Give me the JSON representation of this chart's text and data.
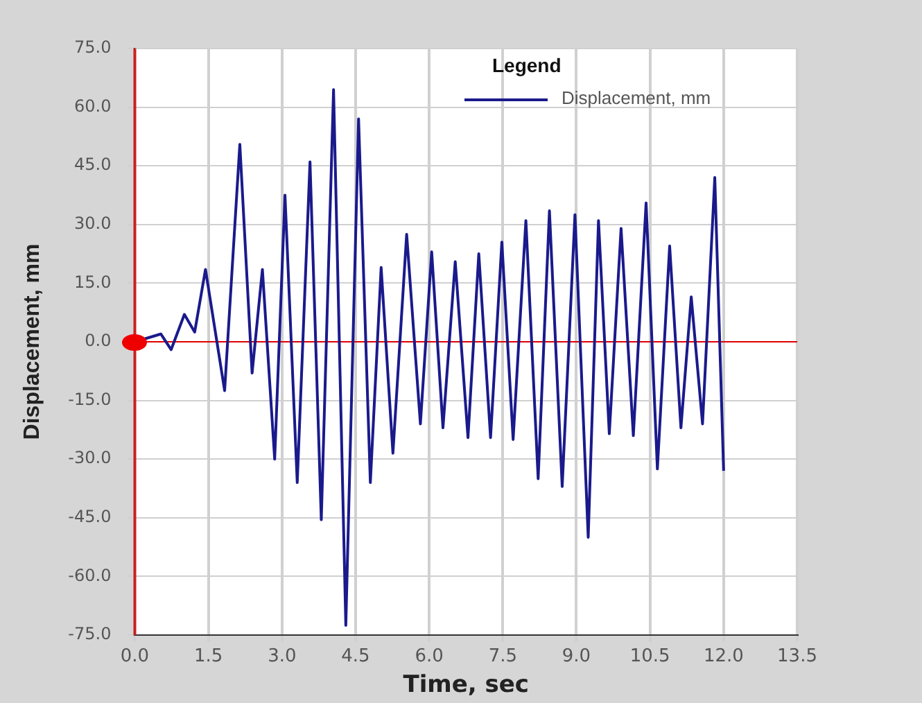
{
  "chart_data": {
    "type": "line",
    "xlabel": "Time, sec",
    "ylabel": "Displacement, mm",
    "legend_title": "Legend",
    "legend": "top right",
    "grid": true,
    "marker": "none",
    "line_style": "solid",
    "xlim": [
      0,
      13.5
    ],
    "ylim": [
      -75,
      75
    ],
    "xticks": [
      {
        "value": 0,
        "label": "0.0"
      },
      {
        "value": 1.5,
        "label": "1.5"
      },
      {
        "value": 3,
        "label": "3.0"
      },
      {
        "value": 4.5,
        "label": "4.5"
      },
      {
        "value": 6,
        "label": "6.0"
      },
      {
        "value": 7.5,
        "label": "7.5"
      },
      {
        "value": 9,
        "label": "9.0"
      },
      {
        "value": 10.5,
        "label": "10.5"
      },
      {
        "value": 12,
        "label": "12.0"
      },
      {
        "value": 13.5,
        "label": "13.5"
      }
    ],
    "yticks": [
      {
        "value": -75,
        "label": "-75.0"
      },
      {
        "value": -60,
        "label": "-60.0"
      },
      {
        "value": -45,
        "label": "-45.0"
      },
      {
        "value": -30,
        "label": "-30.0"
      },
      {
        "value": -15,
        "label": "-15.0"
      },
      {
        "value": 0,
        "label": "0.0"
      },
      {
        "value": 15,
        "label": "15.0"
      },
      {
        "value": 30,
        "label": "30.0"
      },
      {
        "value": 45,
        "label": "45.0"
      },
      {
        "value": 60,
        "label": "60.0"
      },
      {
        "value": 75,
        "label": "75.0"
      }
    ],
    "ref_lines": [
      {
        "axis": "y",
        "value": 0,
        "color": "#e00000"
      },
      {
        "axis": "x",
        "value": 0,
        "color": "#cc2020"
      }
    ],
    "series": [
      {
        "name": "Displacement, mm",
        "color": "#1a1a8c",
        "x": [
          0,
          0.53,
          0.74,
          1.01,
          1.22,
          1.44,
          1.83,
          2.14,
          2.39,
          2.6,
          2.85,
          3.06,
          3.31,
          3.57,
          3.8,
          4.05,
          4.3,
          4.56,
          4.8,
          5.02,
          5.26,
          5.54,
          5.82,
          6.05,
          6.28,
          6.53,
          6.79,
          7.01,
          7.25,
          7.48,
          7.71,
          7.97,
          8.22,
          8.45,
          8.71,
          8.97,
          9.24,
          9.45,
          9.67,
          9.91,
          10.16,
          10.42,
          10.65,
          10.9,
          11.13,
          11.34,
          11.57,
          11.82,
          12
        ],
        "values": [
          0,
          2,
          -2,
          7,
          2.5,
          18.5,
          -12.5,
          50.5,
          -8,
          18.5,
          -30,
          37.5,
          -36,
          46,
          -45.5,
          64.5,
          -72.5,
          57,
          -36,
          19,
          -28.5,
          27.5,
          -21,
          23,
          -22,
          20.5,
          -24.5,
          22.5,
          -24.5,
          25.5,
          -25,
          31,
          -35,
          33.5,
          -37,
          32.5,
          -50,
          31,
          -23.5,
          29,
          -24,
          35.5,
          -32.5,
          24.5,
          -22,
          11.5,
          -21,
          42,
          -33
        ]
      }
    ]
  }
}
